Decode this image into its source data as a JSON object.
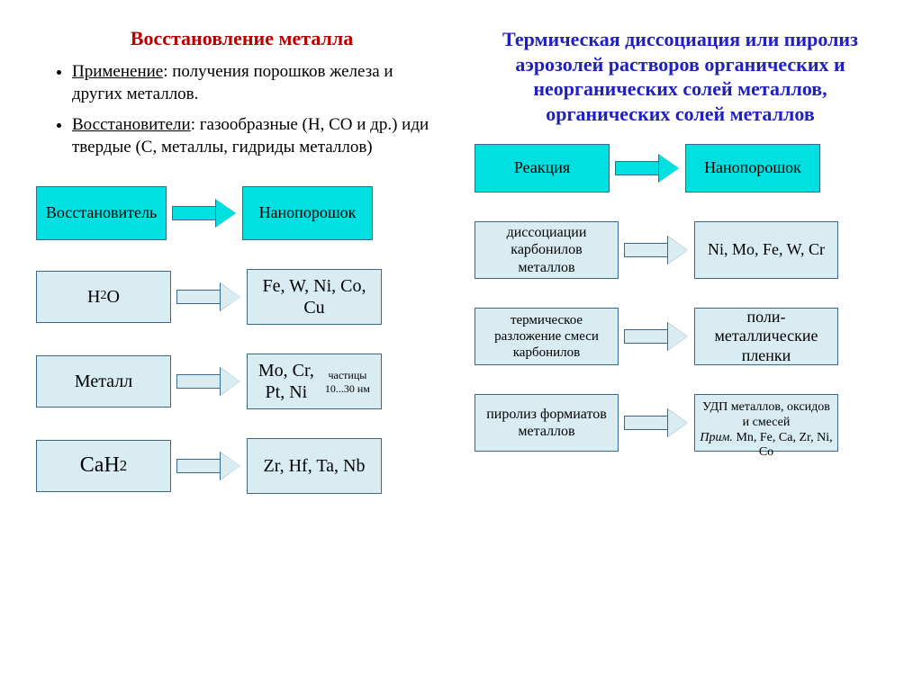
{
  "left": {
    "title": "Восстановление металла",
    "bullets": [
      {
        "label": "Применение",
        "text": ": получения порошков железа и других металлов."
      },
      {
        "label": "Восстановители",
        "text": ": газообразные (H, CO и др.) иди твердые (C, металлы, гидриды металлов)"
      }
    ],
    "header_row": {
      "left": "Восстановитель",
      "right": "Нанопорошок"
    },
    "rows": [
      {
        "left_html": "H<span class='sub'>2</span>O",
        "right": "Fe, W, Ni, Co, Cu"
      },
      {
        "left": "Металл",
        "right": "Mo, Cr, Pt, Ni",
        "note": "частицы 10...30 нм"
      },
      {
        "left_html": "CaH<span class='sub'>2</span>",
        "right": "Zr, Hf, Ta, Nb"
      }
    ]
  },
  "right": {
    "title": "Термическая диссоциация или пиролиз аэрозолей растворов органических и неорганических солей металлов, органических солей металлов",
    "header_row": {
      "left": "Реакция",
      "right": "Нанопорошок"
    },
    "rows": [
      {
        "left": "диссоциации карбонилов металлов",
        "right": "Ni, Mo, Fe, W, Cr"
      },
      {
        "left": "термическое разложение смеси карбонилов",
        "right": "поли-металлические пленки"
      },
      {
        "left": "пиролиз формиатов металлов",
        "right_line1": "УДП металлов, оксидов и смесей",
        "right_line2_italic": "Прим.",
        "right_line2_rest": " Mn, Fe, Ca, Zr, Ni, Co"
      }
    ]
  },
  "colors": {
    "primary_fill": "#00e0e0",
    "pale_fill": "#d8ecf2",
    "border": "#3a6a8a",
    "title_left": "#b80000",
    "title_right": "#2020c0",
    "background": "#ffffff"
  }
}
